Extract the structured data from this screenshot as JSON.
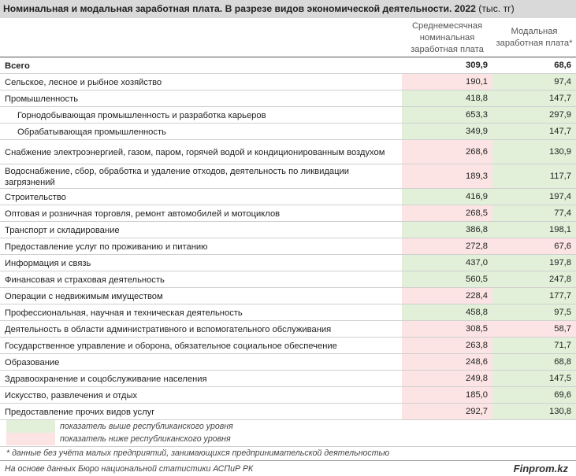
{
  "title": {
    "bold": "Номинальная и модальная заработная плата. В разрезе видов экономической деятельности. 2022",
    "unit": "(тыс. тг)"
  },
  "columns": {
    "nominal": "Среднемесячная номинальная заработная плата",
    "modal": "Модальная заработная плата*"
  },
  "colors": {
    "above": "#e2f0d9",
    "below": "#fce4e4"
  },
  "rows": [
    {
      "label": "Всего",
      "nominal": "309,9",
      "modal": "68,6",
      "total": true,
      "nom_status": "",
      "mod_status": ""
    },
    {
      "label": "Сельское, лесное и рыбное хозяйство",
      "nominal": "190,1",
      "modal": "97,4",
      "nom_status": "below",
      "mod_status": "above"
    },
    {
      "label": "Промышленность",
      "nominal": "418,8",
      "modal": "147,7",
      "nom_status": "above",
      "mod_status": "above"
    },
    {
      "label": "Горнодобывающая промышленность и разработка карьеров",
      "nominal": "653,3",
      "modal": "297,9",
      "indent": true,
      "nom_status": "above",
      "mod_status": "above"
    },
    {
      "label": "Обрабатывающая промышленность",
      "nominal": "349,9",
      "modal": "147,7",
      "indent": true,
      "nom_status": "above",
      "mod_status": "above"
    },
    {
      "label": "Снабжение электроэнергией, газом, паром, горячей водой и кондиционированным воздухом",
      "nominal": "268,6",
      "modal": "130,9",
      "nom_status": "below",
      "mod_status": "above"
    },
    {
      "label": "Водоснабжение, сбор, обработка и удаление отходов, деятельность по ликвидации загрязнений",
      "nominal": "189,3",
      "modal": "117,7",
      "nom_status": "below",
      "mod_status": "above"
    },
    {
      "label": "Строительство",
      "nominal": "416,9",
      "modal": "197,4",
      "nom_status": "above",
      "mod_status": "above"
    },
    {
      "label": "Оптовая и розничная торговля, ремонт автомобилей и мотоциклов",
      "nominal": "268,5",
      "modal": "77,4",
      "nom_status": "below",
      "mod_status": "above"
    },
    {
      "label": "Транспорт и складирование",
      "nominal": "386,8",
      "modal": "198,1",
      "nom_status": "above",
      "mod_status": "above"
    },
    {
      "label": "Предоставление услуг по проживанию и питанию",
      "nominal": "272,8",
      "modal": "67,6",
      "nom_status": "below",
      "mod_status": "below"
    },
    {
      "label": "Информация и связь",
      "nominal": "437,0",
      "modal": "197,8",
      "nom_status": "above",
      "mod_status": "above"
    },
    {
      "label": "Финансовая и страховая деятельность",
      "nominal": "560,5",
      "modal": "247,8",
      "nom_status": "above",
      "mod_status": "above"
    },
    {
      "label": "Операции с недвижимым имуществом",
      "nominal": "228,4",
      "modal": "177,7",
      "nom_status": "below",
      "mod_status": "above"
    },
    {
      "label": "Профессиональная, научная и техническая деятельность",
      "nominal": "458,8",
      "modal": "97,5",
      "nom_status": "above",
      "mod_status": "above"
    },
    {
      "label": "Деятельность в области административного и вспомогательного обслуживания",
      "nominal": "308,5",
      "modal": "58,7",
      "nom_status": "below",
      "mod_status": "below"
    },
    {
      "label": "Государственное управление и оборона, обязательное социальное обеспечение",
      "nominal": "263,8",
      "modal": "71,7",
      "nom_status": "below",
      "mod_status": "above"
    },
    {
      "label": "Образование",
      "nominal": "248,6",
      "modal": "68,8",
      "nom_status": "below",
      "mod_status": "above"
    },
    {
      "label": "Здравоохранение и соцобслуживание населения",
      "nominal": "249,8",
      "modal": "147,5",
      "nom_status": "below",
      "mod_status": "above"
    },
    {
      "label": "Искусство, развлечения и отдых",
      "nominal": "185,0",
      "modal": "69,6",
      "nom_status": "below",
      "mod_status": "above"
    },
    {
      "label": "Предоставление прочих видов услуг",
      "nominal": "292,7",
      "modal": "130,8",
      "nom_status": "below",
      "mod_status": "above"
    }
  ],
  "legend": {
    "above": "показатель выше республиканского уровня",
    "below": "показатель ниже республиканского уровня"
  },
  "note": "* данные без учёта малых предприятий, занимающихся предпринимательской деятельностью",
  "source": "На основе данных Бюро национальной статистики АСПиР РК",
  "brand": "Finprom.kz"
}
